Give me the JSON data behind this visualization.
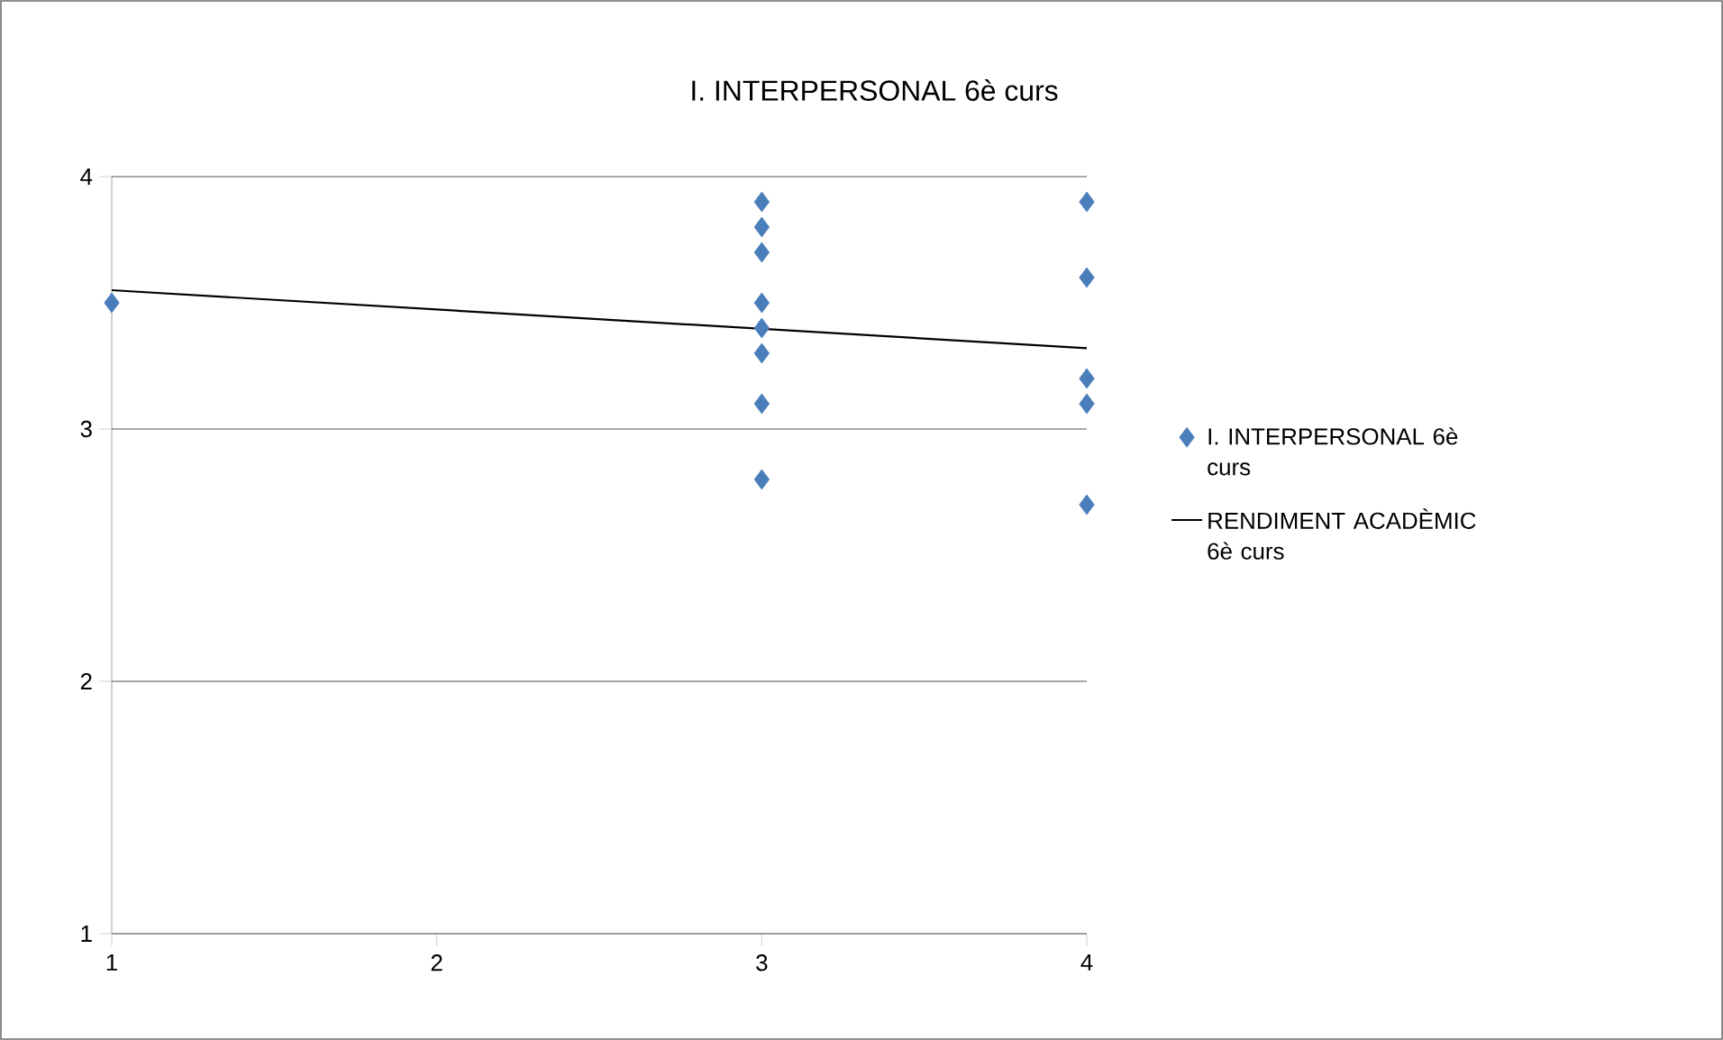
{
  "chart_data": {
    "type": "scatter",
    "title": "I. INTERPERSONAL 6è curs",
    "xlim": [
      1,
      4
    ],
    "xticks": [
      1,
      2,
      3,
      4
    ],
    "ylim": [
      1,
      4
    ],
    "yticks": [
      1,
      2,
      3,
      4
    ],
    "grid": "y",
    "legend": "right",
    "series": [
      {
        "name": "I. INTERPERSONAL 6è curs",
        "color": "#4a7ebb",
        "marker": "diamond",
        "x": [
          1,
          3,
          3,
          3,
          3,
          3,
          3,
          3,
          3,
          4,
          4,
          4,
          4,
          4
        ],
        "values": [
          3.5,
          3.9,
          3.8,
          3.7,
          3.5,
          3.4,
          3.3,
          3.1,
          2.8,
          3.9,
          3.6,
          3.2,
          3.1,
          2.7
        ]
      },
      {
        "name": "RENDIMENT ACADÈMIC 6è curs",
        "type": "line",
        "color": "#000000",
        "marker": "none",
        "line_style": "solid",
        "x": [
          1,
          4
        ],
        "values": [
          3.55,
          3.32
        ]
      }
    ]
  }
}
